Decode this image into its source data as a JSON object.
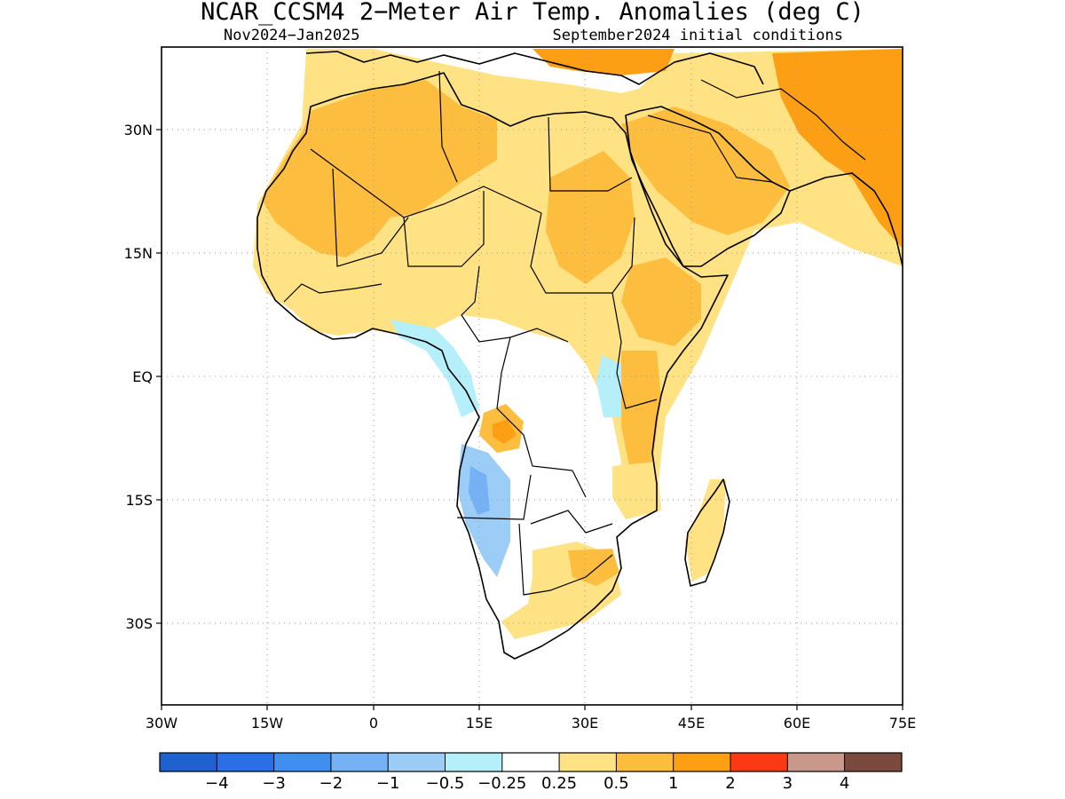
{
  "title": "NCAR_CCSM4 2−Meter Air Temp. Anomalies (deg C)",
  "valid_period": "Nov2024−Jan2025",
  "initial_conditions": "September2024 initial conditions",
  "map": {
    "lon_range": [
      -30,
      75
    ],
    "lat_range": [
      -40,
      40
    ],
    "lat_ticks": [
      {
        "value": 30,
        "label": "30N"
      },
      {
        "value": 15,
        "label": "15N"
      },
      {
        "value": 0,
        "label": "EQ"
      },
      {
        "value": -15,
        "label": "15S"
      },
      {
        "value": -30,
        "label": "30S"
      }
    ],
    "lon_ticks": [
      {
        "value": -30,
        "label": "30W"
      },
      {
        "value": -15,
        "label": "15W"
      },
      {
        "value": 0,
        "label": "0"
      },
      {
        "value": 15,
        "label": "15E"
      },
      {
        "value": 30,
        "label": "30E"
      },
      {
        "value": 45,
        "label": "45E"
      },
      {
        "value": 60,
        "label": "60E"
      },
      {
        "value": 75,
        "label": "75E"
      }
    ],
    "grid": true
  },
  "colorbar": {
    "colors": [
      "#1f62cf",
      "#2a6fe6",
      "#3f8fee",
      "#75b2f5",
      "#9ccdf6",
      "#b4effa",
      "#ffffff",
      "#ffe283",
      "#fdbd3e",
      "#fd9f14",
      "#fb3a13",
      "#c8998b",
      "#7a4a3e"
    ],
    "labels": [
      "−4",
      "−3",
      "−2",
      "−1",
      "−0.5",
      "−0.25",
      "0.25",
      "0.5",
      "1",
      "2",
      "3",
      "4"
    ]
  }
}
